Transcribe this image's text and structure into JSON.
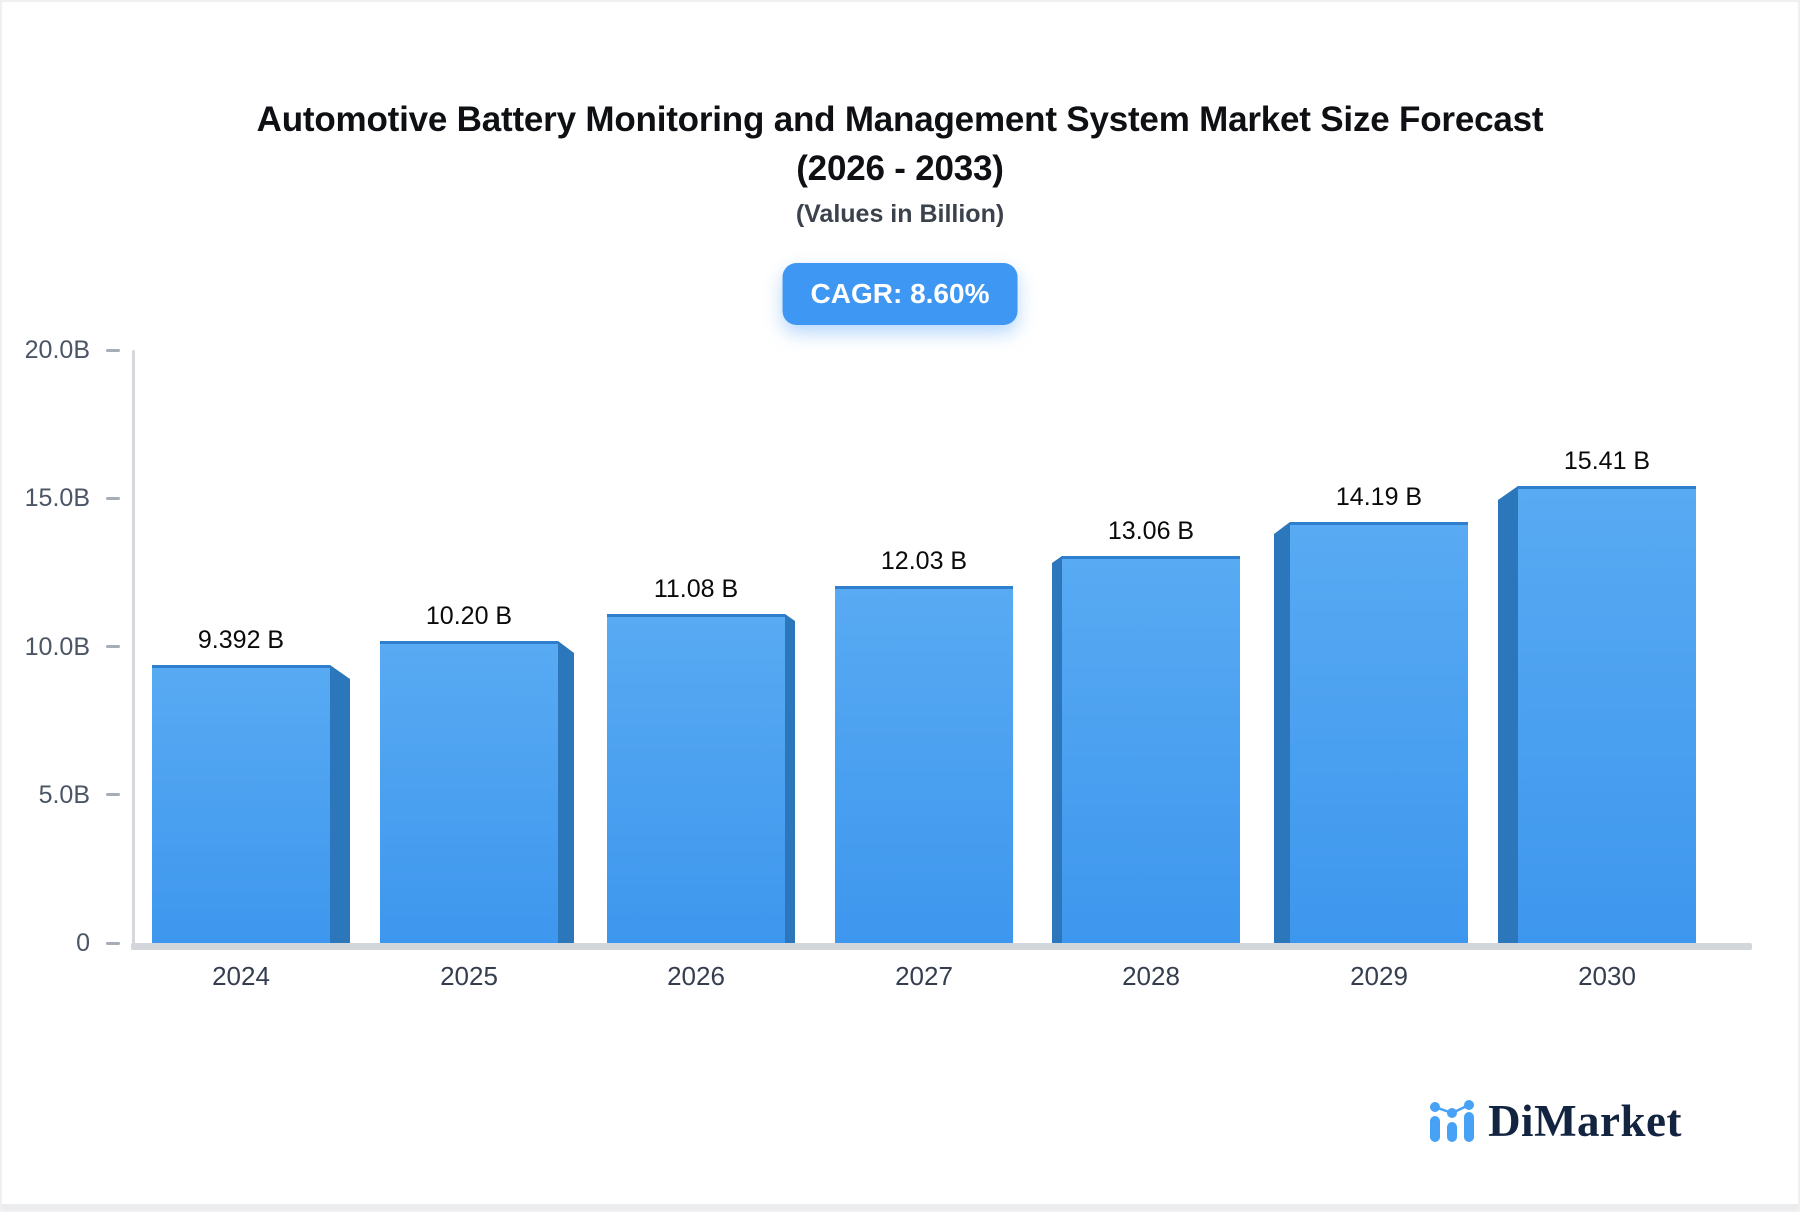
{
  "header": {
    "title_line1": "Automotive Battery Monitoring and Management System Market Size Forecast",
    "title_line2": "(2026 - 2033)",
    "subtitle": "(Values in Billion)",
    "cagr_badge": "CAGR: 8.60%"
  },
  "chart_data": {
    "type": "bar",
    "style": "3d-perspective-columns",
    "title": "Automotive Battery Monitoring and Management System Market Size Forecast (2026 - 2033)",
    "subtitle": "(Values in Billion)",
    "cagr_percent": 8.6,
    "categories": [
      "2024",
      "2025",
      "2026",
      "2027",
      "2028",
      "2029",
      "2030"
    ],
    "values": [
      9.392,
      10.2,
      11.08,
      12.03,
      13.06,
      14.19,
      15.41
    ],
    "value_labels": [
      "9.392 B",
      "10.20 B",
      "11.08 B",
      "12.03 B",
      "13.06 B",
      "14.19 B",
      "15.41 B"
    ],
    "ylim": [
      0,
      20
    ],
    "ytick_values": [
      20,
      15,
      10,
      5,
      0
    ],
    "ytick_labels": [
      "20.0B",
      "15.0B",
      "10.0B",
      "5.0B",
      "0"
    ],
    "grid": false,
    "legend": false,
    "xlabel": "",
    "ylabel": ""
  },
  "colors": {
    "accent_blue": "#3e97f2",
    "bar_front_top": "#58aaf2",
    "bar_front_bottom": "#3e97ee",
    "bar_side": "#2c76bb",
    "bar_top_edge": "#2e80cf",
    "axis_line": "#d5d7db",
    "axis_baseline": "#d3d6da",
    "tick_dash": "#a7adb6",
    "ylabel": "#4b5564",
    "xlabel": "#353e4f",
    "value_label": "#0a0a0a",
    "title": "#0e1013",
    "subtitle": "#3b424c",
    "logo_text": "#132440",
    "logo_blue": "#47a1f5",
    "page_border": "#f0f0f2",
    "page_bottom_strip": "#eaecee"
  },
  "logo": {
    "text": "DiMarket",
    "icon": "bar-chart-with-trend-icon"
  }
}
